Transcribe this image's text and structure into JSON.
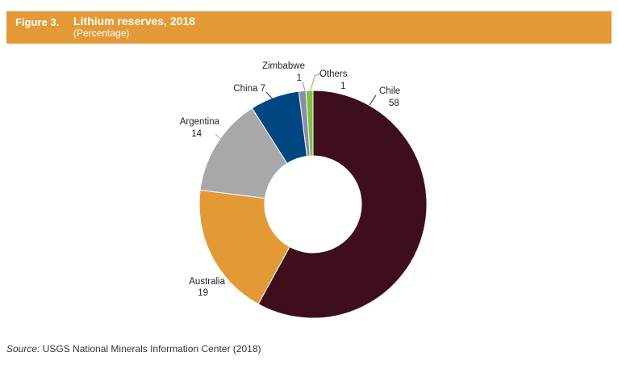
{
  "figure": {
    "number": "Figure 3.",
    "title": "Lithium reserves, 2018",
    "subtitle": "(Percentage)"
  },
  "source": {
    "prefix": "Source:",
    "text": "USGS National Minerals Information Center (2018)"
  },
  "colors": {
    "header_bg": "#E39A36",
    "Chile": "#3E0E1C",
    "Australia": "#E39A36",
    "Argentina": "#A8A8A8",
    "China": "#004680",
    "Zimbabwe": "#8C8CA8",
    "Others": "#7CC142"
  },
  "chart_data": {
    "type": "pie",
    "variant": "donut",
    "title": "Lithium reserves, 2018",
    "subtitle": "(Percentage)",
    "slices": [
      {
        "label": "Chile",
        "value": 58,
        "value_text": "58"
      },
      {
        "label": "Australia",
        "value": 19,
        "value_text": "19"
      },
      {
        "label": "Argentina",
        "value": 14,
        "value_text": "14"
      },
      {
        "label": "China",
        "value": 7,
        "value_text": "7"
      },
      {
        "label": "Zimbabwe",
        "value": 1,
        "value_text": "1"
      },
      {
        "label": "Others",
        "value": 1,
        "value_text": "1"
      }
    ]
  }
}
